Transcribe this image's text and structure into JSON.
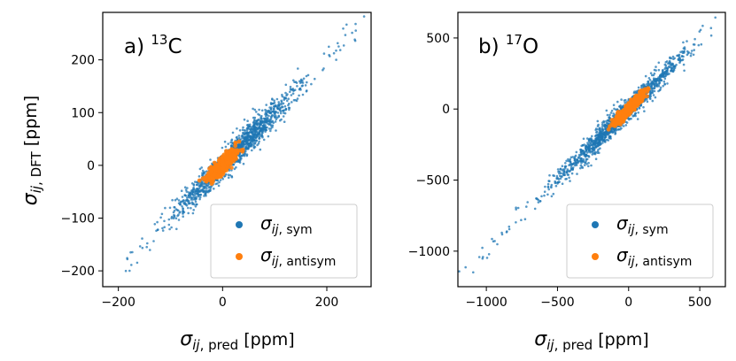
{
  "chart_data": [
    {
      "type": "scatter",
      "title": "a) ¹³C",
      "xlabel": "σij, pred [ppm]",
      "ylabel": "σij, DFT [ppm]",
      "xlim": [
        -230,
        285
      ],
      "ylim": [
        -230,
        290
      ],
      "xticks": [
        -200,
        0,
        200
      ],
      "xtick_labels": [
        "−200",
        "0",
        "200"
      ],
      "yticks": [
        -200,
        -100,
        0,
        100,
        200
      ],
      "ytick_labels": [
        "−200",
        "−100",
        "0",
        "100",
        "200"
      ],
      "legend_position": "lower-right",
      "series": [
        {
          "name": "σij,sym",
          "color": "#1f77b4",
          "diagonal_range": [
            -190,
            265
          ],
          "core_range": [
            -140,
            185
          ],
          "typical_scatter": 12
        },
        {
          "name": "σij,antisym",
          "color": "#ff7f0e",
          "diagonal_range": [
            -40,
            40
          ],
          "core_range": [
            -30,
            30
          ],
          "typical_scatter": 6
        }
      ],
      "legend": [
        {
          "symbol": "σ",
          "subscript": "ij",
          "label_suffix": ", sym"
        },
        {
          "symbol": "σ",
          "subscript": "ij",
          "label_suffix": ", antisym"
        }
      ]
    },
    {
      "type": "scatter",
      "title": "b) ¹⁷O",
      "xlabel": "σij, pred [ppm]",
      "ylabel": "",
      "xlim": [
        -1200,
        680
      ],
      "ylim": [
        -1250,
        680
      ],
      "xticks": [
        -1000,
        -500,
        0,
        500
      ],
      "xtick_labels": [
        "−1000",
        "−500",
        "0",
        "500"
      ],
      "yticks": [
        -1000,
        -500,
        0,
        500
      ],
      "ytick_labels": [
        "−1000",
        "−500",
        "0",
        "500"
      ],
      "legend_position": "lower-right",
      "series": [
        {
          "name": "σij,sym",
          "color": "#1f77b4",
          "diagonal_range": [
            -1150,
            620
          ],
          "core_range": [
            -700,
            560
          ],
          "typical_scatter": 35
        },
        {
          "name": "σij,antisym",
          "color": "#ff7f0e",
          "diagonal_range": [
            -150,
            150
          ],
          "core_range": [
            -120,
            130
          ],
          "typical_scatter": 15
        }
      ],
      "legend": [
        {
          "symbol": "σ",
          "subscript": "ij",
          "label_suffix": ", sym"
        },
        {
          "symbol": "σ",
          "subscript": "ij",
          "label_suffix": ", antisym"
        }
      ]
    }
  ],
  "panels_text": [
    {
      "title_prefix": "a) ",
      "title_sup": "13",
      "title_elem": "C"
    },
    {
      "title_prefix": "b) ",
      "title_sup": "17",
      "title_elem": "O"
    }
  ],
  "axis_text": {
    "sigma": "σ",
    "sub_ij": "ij",
    "x_suffix": ", pred",
    "y_suffix": ", DFT",
    "unit": " [ppm]"
  },
  "colors": {
    "sym": "#1f77b4",
    "antisym": "#ff7f0e"
  }
}
